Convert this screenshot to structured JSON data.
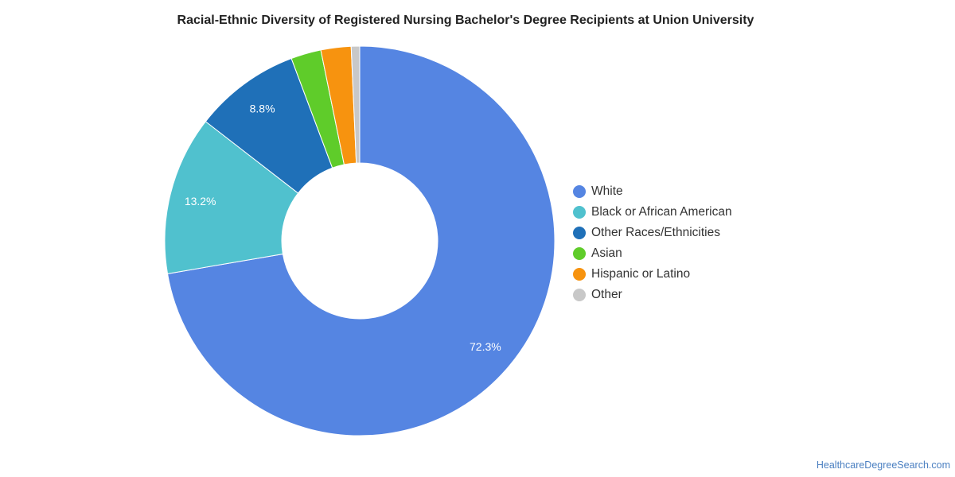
{
  "title": "Racial-Ethnic Diversity of Registered Nursing Bachelor's Degree Recipients at Union University",
  "source": "HealthcareDegreeSearch.com",
  "chart_data": {
    "type": "pie",
    "style": "donut",
    "legend_position": "right",
    "slices": [
      {
        "label": "White",
        "value": 72.3,
        "display": "72.3%",
        "color": "#5585e2"
      },
      {
        "label": "Black or African American",
        "value": 13.2,
        "display": "13.2%",
        "color": "#50c1ce"
      },
      {
        "label": "Other Races/Ethnicities",
        "value": 8.8,
        "display": "8.8%",
        "color": "#1f70b8"
      },
      {
        "label": "Asian",
        "value": 2.5,
        "display": "",
        "color": "#5fcc2a"
      },
      {
        "label": "Hispanic or Latino",
        "value": 2.5,
        "display": "",
        "color": "#f7930f"
      },
      {
        "label": "Other",
        "value": 0.7,
        "display": "",
        "color": "#c8c8c8"
      }
    ]
  }
}
